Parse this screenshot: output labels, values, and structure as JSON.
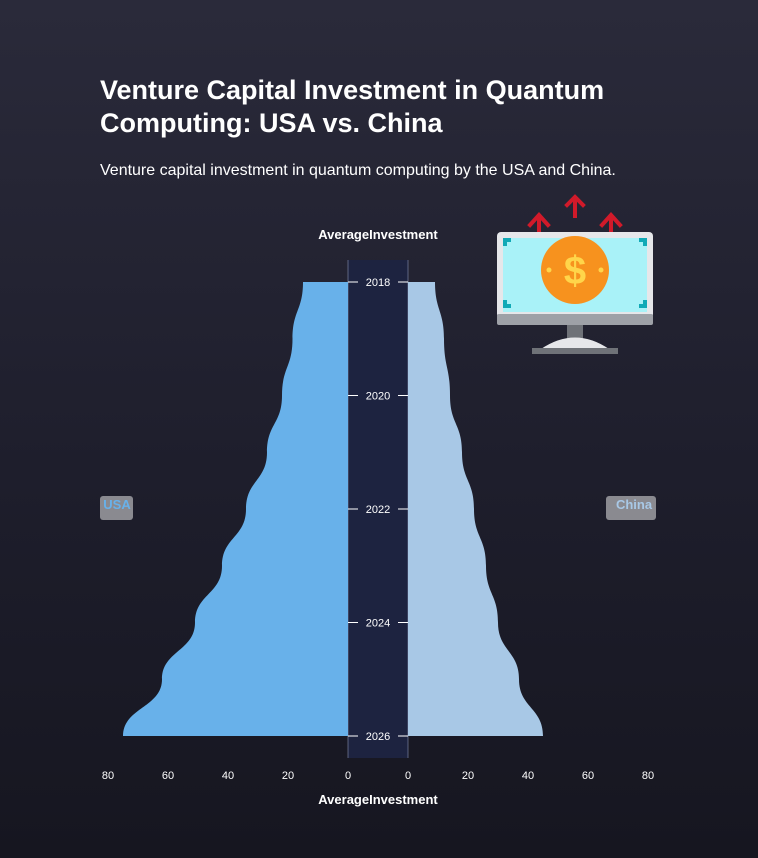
{
  "title": "Venture Capital Investment in Quantum Computing: USA vs. China",
  "subtitle": "Venture capital investment in quantum computing by the USA and China.",
  "colors": {
    "usa": "#68b1ea",
    "china": "#a8c8e6",
    "center_band": "#1d2340",
    "label_box": "#8a8a90",
    "arrow": "#d11a2a",
    "coin": "#f7921e",
    "screen": "#a9f2f8"
  },
  "icon": "money-growth-monitor-icon",
  "chart_data": {
    "type": "area",
    "orientation": "butterfly",
    "center_axis_label": "AverageInvestment",
    "x_axis_label": "AverageInvestment",
    "years": [
      "2018",
      "2020",
      "2022",
      "2024",
      "2026"
    ],
    "y_range": [
      2018,
      2026
    ],
    "x_range": [
      0,
      80
    ],
    "x_ticks": [
      0,
      20,
      40,
      60,
      80
    ],
    "series": [
      {
        "name": "USA",
        "side": "left",
        "x": [
          2018,
          2019,
          2020,
          2021,
          2022,
          2023,
          2024,
          2025,
          2026
        ],
        "values": [
          15,
          18.5,
          22,
          27,
          34,
          42,
          51,
          62,
          75
        ]
      },
      {
        "name": "China",
        "side": "right",
        "x": [
          2018,
          2019,
          2020,
          2021,
          2022,
          2023,
          2024,
          2025,
          2026
        ],
        "values": [
          9,
          12,
          14,
          18,
          22,
          26,
          30,
          37,
          45
        ]
      }
    ]
  }
}
